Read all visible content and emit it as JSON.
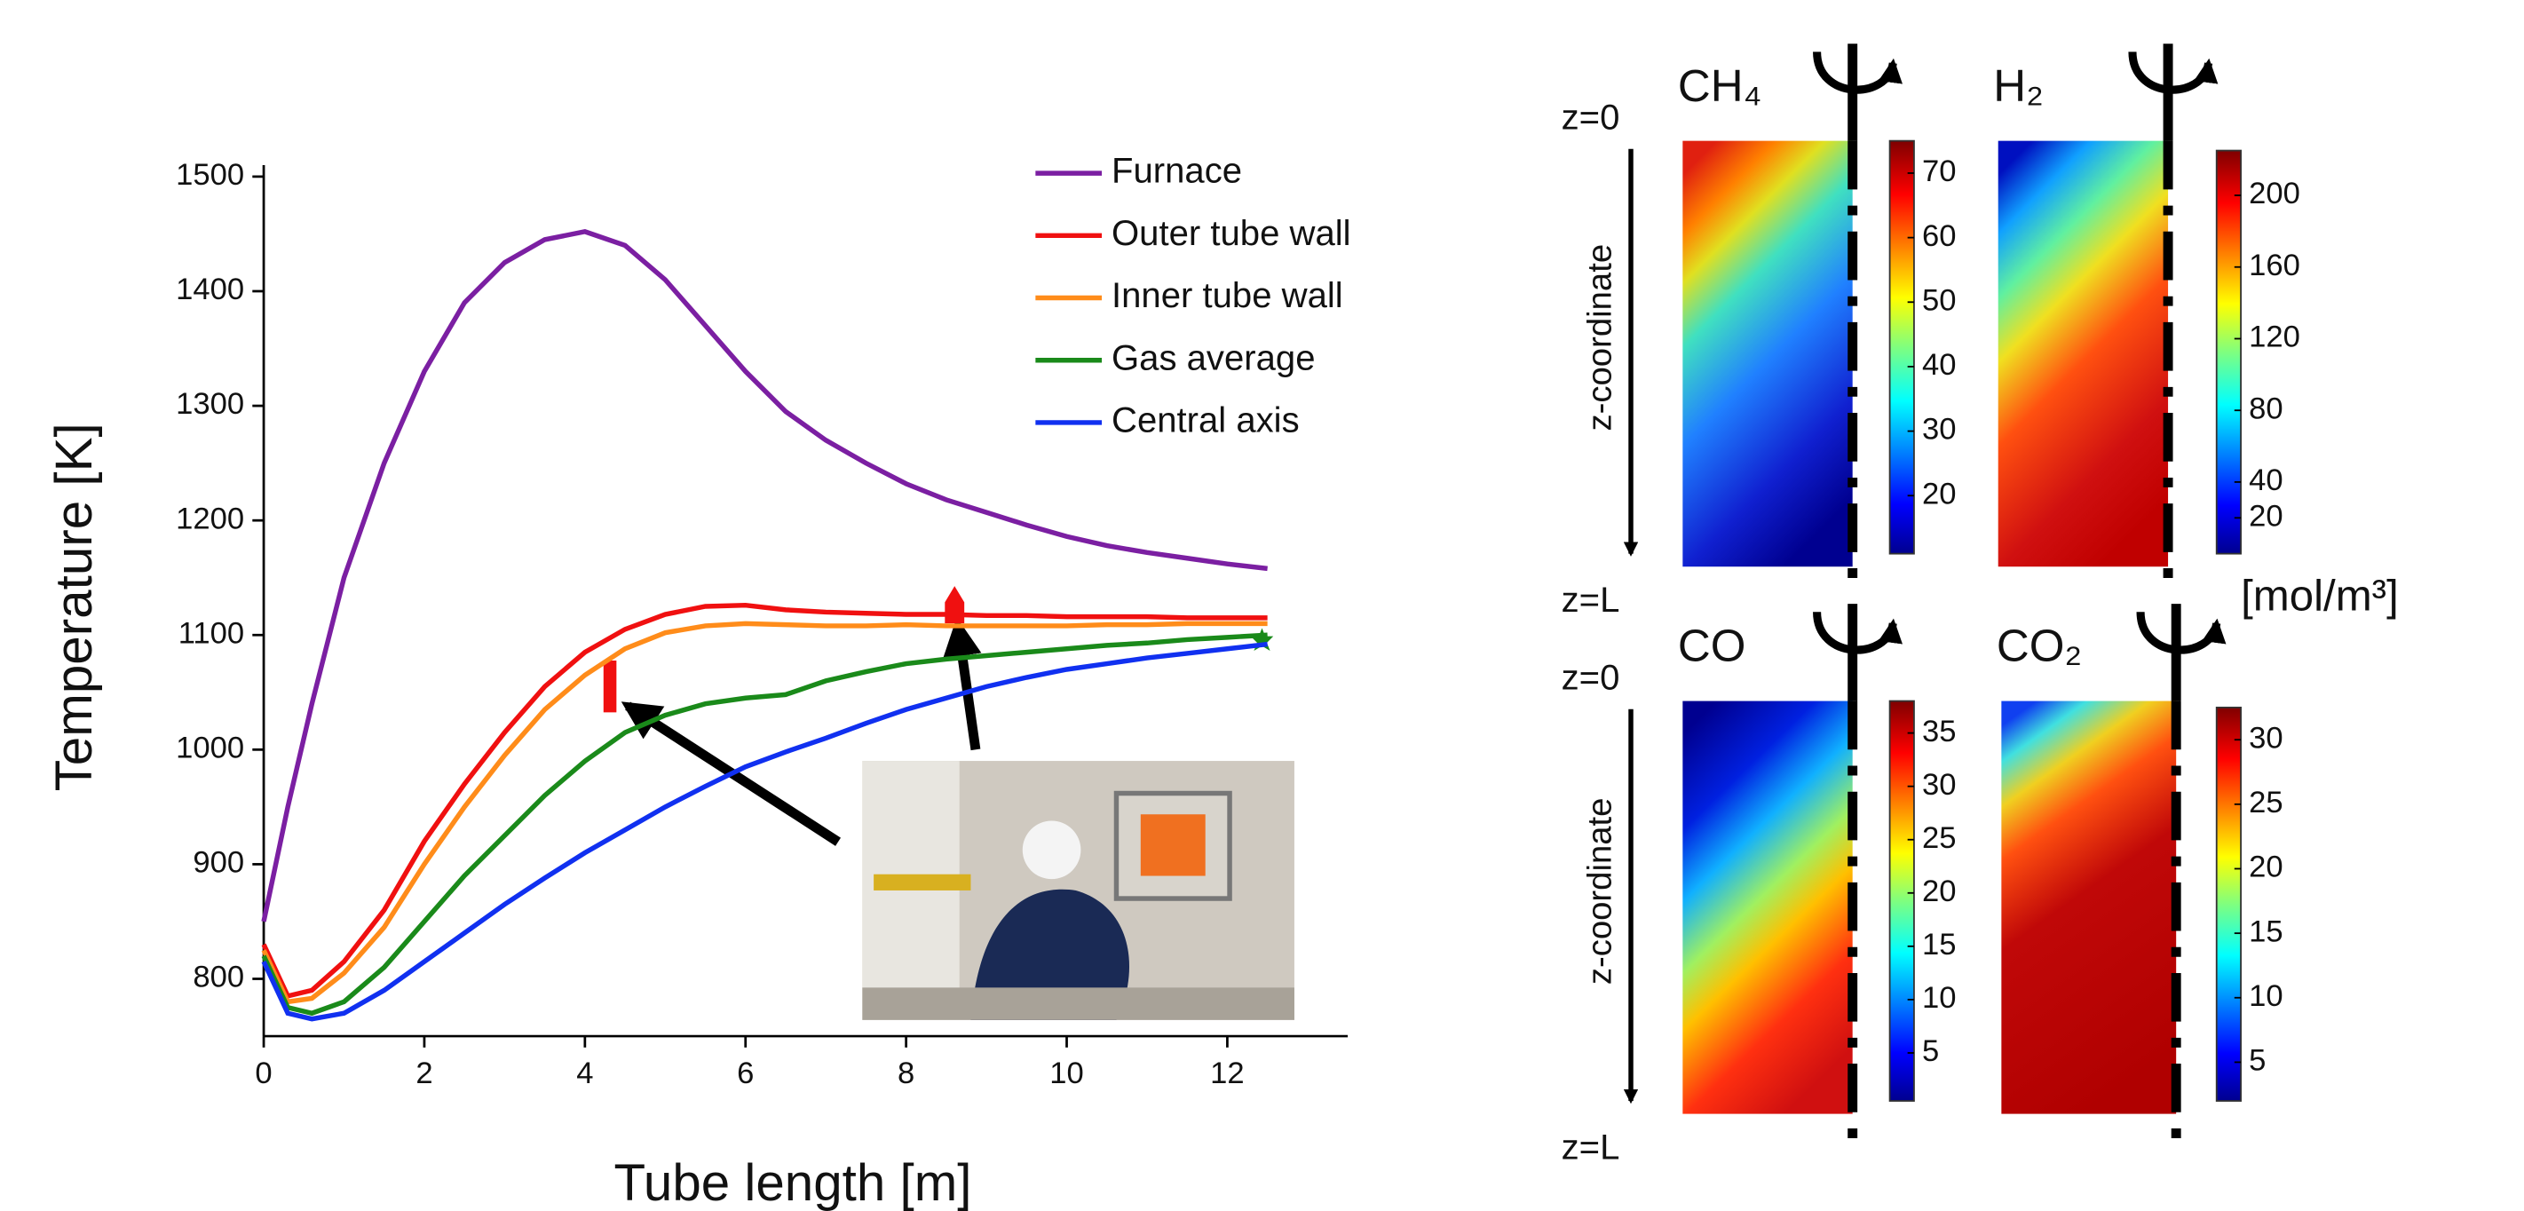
{
  "chart_data": [
    {
      "type": "line",
      "xlabel": "Tube length [m]",
      "ylabel": "Temperature [K]",
      "x": [
        0,
        0.3,
        0.6,
        1,
        1.5,
        2,
        2.5,
        3,
        3.5,
        4,
        4.5,
        5,
        5.5,
        6,
        6.5,
        7,
        7.5,
        8,
        8.5,
        9,
        9.5,
        10,
        10.5,
        11,
        11.5,
        12,
        12.5
      ],
      "series": [
        {
          "name": "Furnace",
          "color": "#7b1fa2",
          "values": [
            850,
            950,
            1040,
            1150,
            1250,
            1330,
            1390,
            1425,
            1445,
            1452,
            1440,
            1410,
            1370,
            1330,
            1295,
            1270,
            1250,
            1232,
            1218,
            1207,
            1196,
            1186,
            1178,
            1172,
            1167,
            1162,
            1158
          ]
        },
        {
          "name": "Outer tube wall",
          "color": "#f01010",
          "values": [
            830,
            785,
            790,
            815,
            860,
            920,
            970,
            1015,
            1055,
            1085,
            1105,
            1118,
            1125,
            1126,
            1122,
            1120,
            1119,
            1118,
            1118,
            1117,
            1117,
            1116,
            1116,
            1116,
            1115,
            1115,
            1115
          ]
        },
        {
          "name": "Inner tube wall",
          "color": "#ff8c1a",
          "values": [
            825,
            780,
            783,
            805,
            845,
            900,
            950,
            995,
            1035,
            1065,
            1088,
            1102,
            1108,
            1110,
            1109,
            1108,
            1108,
            1109,
            1108,
            1108,
            1108,
            1108,
            1109,
            1109,
            1110,
            1110,
            1110
          ]
        },
        {
          "name": "Gas average",
          "color": "#1a8a1a",
          "values": [
            820,
            775,
            770,
            780,
            810,
            850,
            890,
            925,
            960,
            990,
            1015,
            1030,
            1040,
            1045,
            1048,
            1060,
            1068,
            1075,
            1079,
            1082,
            1085,
            1088,
            1091,
            1093,
            1096,
            1098,
            1100
          ]
        },
        {
          "name": "Central axis",
          "color": "#1030f0",
          "values": [
            815,
            770,
            765,
            770,
            790,
            815,
            840,
            865,
            888,
            910,
            930,
            950,
            968,
            985,
            998,
            1010,
            1023,
            1035,
            1045,
            1055,
            1063,
            1070,
            1075,
            1080,
            1084,
            1088,
            1092
          ]
        }
      ],
      "xlim": [
        0,
        13.5
      ],
      "xticks": [
        0,
        2,
        4,
        6,
        8,
        10,
        12
      ],
      "ylim": [
        750,
        1510
      ],
      "yticks": [
        800,
        900,
        1000,
        1100,
        1200,
        1300,
        1400,
        1500
      ],
      "legend": "upper right"
    },
    {
      "type": "heatmap",
      "title": "CH₄",
      "z_top": "z=0",
      "z_bottom": "z=L",
      "z_label": "z-coordinate",
      "clim": [
        11,
        75
      ],
      "cticks": [
        20,
        30,
        40,
        50,
        60,
        70
      ]
    },
    {
      "type": "heatmap",
      "title": "H₂",
      "colorbar_label": "[mol/m³]",
      "clim": [
        0,
        225
      ],
      "cticks": [
        20,
        40,
        80,
        120,
        160,
        200
      ]
    },
    {
      "type": "heatmap",
      "title": "CO",
      "z_top": "z=0",
      "z_bottom": "z=L",
      "z_label": "z-coordinate",
      "clim": [
        0.5,
        38
      ],
      "cticks": [
        5,
        10,
        15,
        20,
        25,
        30,
        35
      ]
    },
    {
      "type": "heatmap",
      "title": "CO₂",
      "clim": [
        2,
        32.5
      ],
      "cticks": [
        5,
        10,
        15,
        20,
        25,
        30
      ]
    }
  ]
}
